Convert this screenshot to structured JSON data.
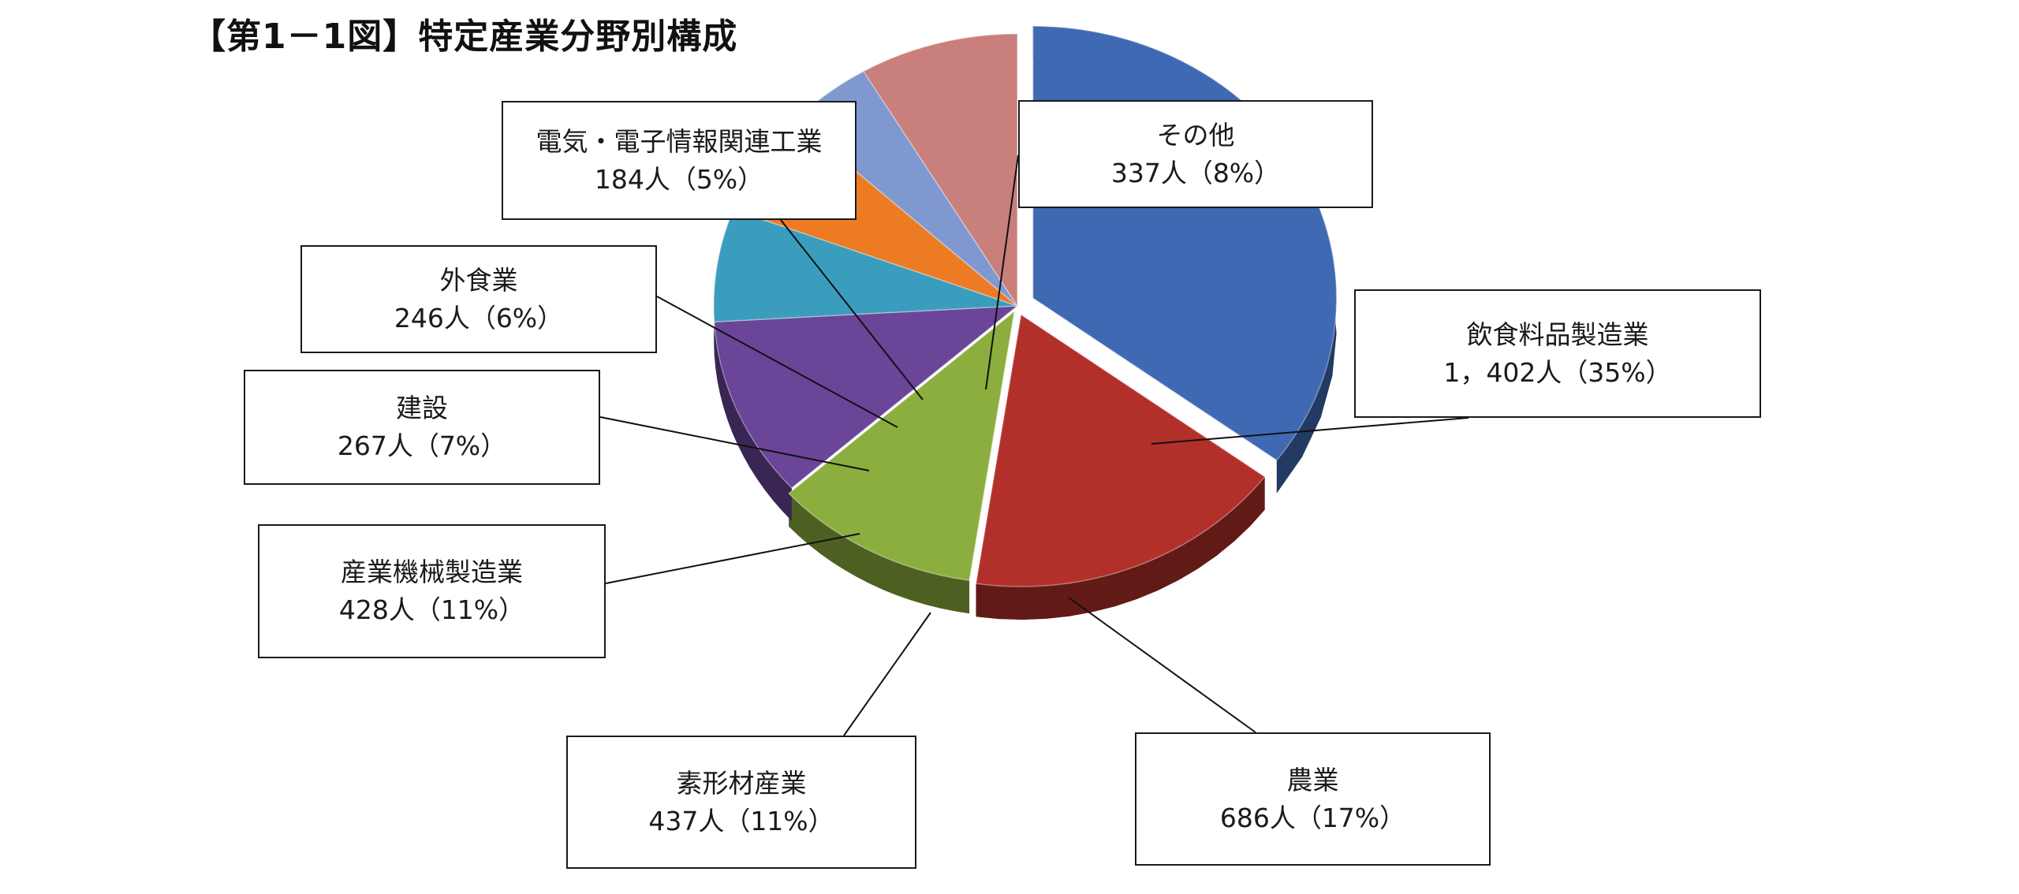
{
  "chart_data": {
    "type": "pie",
    "title": "【第1－1図】特定産業分野別構成",
    "unit": "人",
    "slices": [
      {
        "key": "food",
        "name": "飲食料品製造業",
        "value": 1402,
        "value_label": "1，402人",
        "percent_label": "35%",
        "color": "#3f6ab3"
      },
      {
        "key": "agri",
        "name": "農業",
        "value": 686,
        "value_label": "686人",
        "percent_label": "17%",
        "color": "#b3302a"
      },
      {
        "key": "material",
        "name": "素形材産業",
        "value": 437,
        "value_label": "437人",
        "percent_label": "11%",
        "color": "#8cae3e"
      },
      {
        "key": "machinery",
        "name": "産業機械製造業",
        "value": 428,
        "value_label": "428人",
        "percent_label": "11%",
        "color": "#6a4598"
      },
      {
        "key": "construction",
        "name": "建設",
        "value": 267,
        "value_label": "267人",
        "percent_label": "7%",
        "color": "#3b9dbd"
      },
      {
        "key": "restaurant",
        "name": "外食業",
        "value": 246,
        "value_label": "246人",
        "percent_label": "6%",
        "color": "#ec7b24"
      },
      {
        "key": "electric",
        "name": "電気・電子情報関連工業",
        "value": 184,
        "value_label": "184人",
        "percent_label": "5%",
        "color": "#7f98d0"
      },
      {
        "key": "other",
        "name": "その他",
        "value": 337,
        "value_label": "337人",
        "percent_label": "8%",
        "color": "#c97f7b"
      }
    ]
  }
}
